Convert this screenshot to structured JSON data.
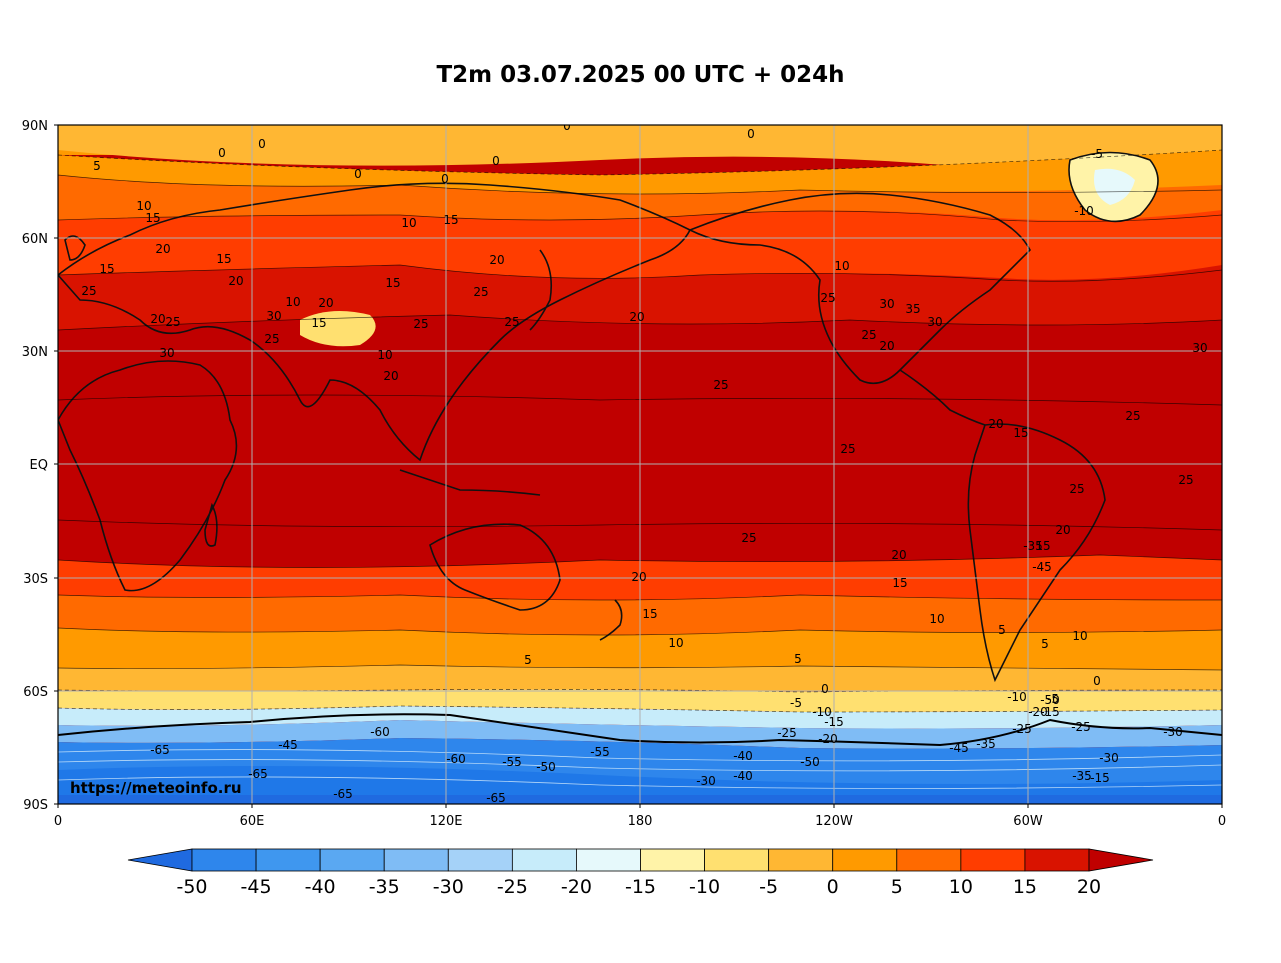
{
  "title": "T2m 03.07.2025 00 UTC + 024h",
  "watermark": "https://meteoinfo.ru",
  "lat_labels": [
    "90N",
    "60N",
    "30N",
    "EQ",
    "30S",
    "60S",
    "90S"
  ],
  "lon_labels": [
    "0",
    "60E",
    "120E",
    "180",
    "120W",
    "60W",
    "0"
  ],
  "colorbar": {
    "ticks": [
      "-50",
      "-45",
      "-40",
      "-35",
      "-30",
      "-25",
      "-20",
      "-15",
      "-10",
      "-5",
      "0",
      "5",
      "10",
      "15",
      "20"
    ],
    "colors": [
      "#1f78e8",
      "#2e86ec",
      "#3f97ef",
      "#5aa8f2",
      "#7fbcf5",
      "#a5d2f8",
      "#c7ecfa",
      "#e6f9fb",
      "#fff3a8",
      "#ffe070",
      "#ffb733",
      "#ff9a00",
      "#ff6a00",
      "#ff3d00",
      "#d91300"
    ],
    "low_extend_color": "#1f6ae0",
    "high_extend_color": "#c00000"
  },
  "contour_labels": [
    {
      "v": "0"
    },
    {
      "v": "0"
    },
    {
      "v": "0"
    },
    {
      "v": "0"
    },
    {
      "v": "0"
    },
    {
      "v": "0"
    },
    {
      "v": "0"
    },
    {
      "v": "-5"
    },
    {
      "v": "5"
    },
    {
      "v": "10"
    },
    {
      "v": "15"
    },
    {
      "v": "20"
    },
    {
      "v": "15"
    },
    {
      "v": "25"
    },
    {
      "v": "20"
    },
    {
      "v": "15"
    },
    {
      "v": "10"
    },
    {
      "v": "15"
    },
    {
      "v": "20"
    },
    {
      "v": "25"
    },
    {
      "v": "30"
    },
    {
      "v": "25"
    },
    {
      "v": "20"
    },
    {
      "v": "15"
    },
    {
      "v": "10"
    },
    {
      "v": "20"
    },
    {
      "v": "25"
    },
    {
      "v": "30"
    },
    {
      "v": "35"
    },
    {
      "v": "30"
    },
    {
      "v": "25"
    },
    {
      "v": "20"
    },
    {
      "v": "25"
    },
    {
      "v": "25"
    },
    {
      "v": "30"
    },
    {
      "v": "25"
    },
    {
      "v": "20"
    },
    {
      "v": "15"
    },
    {
      "v": "10"
    },
    {
      "v": "25"
    },
    {
      "v": "20"
    },
    {
      "v": "25"
    },
    {
      "v": "20"
    },
    {
      "v": "15"
    },
    {
      "v": "10"
    },
    {
      "v": "5"
    },
    {
      "v": "25"
    },
    {
      "v": "20"
    },
    {
      "v": "15"
    },
    {
      "v": "10"
    },
    {
      "v": "5"
    },
    {
      "v": "0"
    },
    {
      "v": "-5"
    },
    {
      "v": "-10"
    },
    {
      "v": "-15"
    },
    {
      "v": "-20"
    },
    {
      "v": "-25"
    },
    {
      "v": "-30"
    },
    {
      "v": "-35"
    },
    {
      "v": "-40"
    },
    {
      "v": "-45"
    },
    {
      "v": "-50"
    },
    {
      "v": "-55"
    },
    {
      "v": "-60"
    },
    {
      "v": "-65"
    },
    {
      "v": "-65"
    },
    {
      "v": "-65"
    },
    {
      "v": "-65"
    },
    {
      "v": "-50"
    },
    {
      "v": "-55"
    },
    {
      "v": "-60"
    },
    {
      "v": "-45"
    },
    {
      "v": "-40"
    },
    {
      "v": "-35"
    },
    {
      "v": "-30"
    },
    {
      "v": "-25"
    },
    {
      "v": "-20"
    },
    {
      "v": "-15"
    },
    {
      "v": "-10"
    },
    {
      "v": "-5"
    },
    {
      "v": "0"
    },
    {
      "v": "5"
    },
    {
      "v": "10"
    },
    {
      "v": "15"
    },
    {
      "v": "20"
    },
    {
      "v": "25"
    },
    {
      "v": "30"
    },
    {
      "v": "20"
    },
    {
      "v": "25"
    },
    {
      "v": "25"
    },
    {
      "v": "15"
    },
    {
      "v": "10"
    },
    {
      "v": "5"
    },
    {
      "v": "-45"
    },
    {
      "v": "-50"
    },
    {
      "v": "-35"
    },
    {
      "v": "-25"
    },
    {
      "v": "-30"
    },
    {
      "v": "-15"
    },
    {
      "v": "-10"
    }
  ]
}
